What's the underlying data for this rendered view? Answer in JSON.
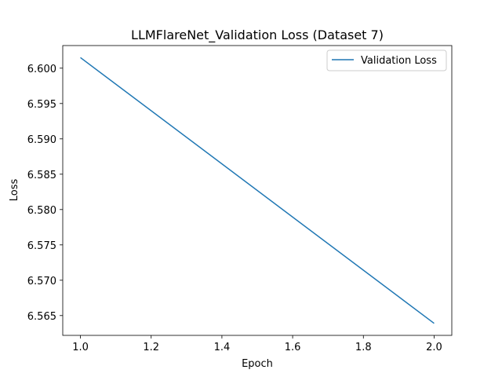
{
  "chart_data": {
    "type": "line",
    "title": "LLMFlareNet_Validation Loss  (Dataset 7)",
    "xlabel": "Epoch",
    "ylabel": "Loss",
    "x": [
      1.0,
      2.0
    ],
    "series": [
      {
        "name": "Validation Loss",
        "values": [
          6.6015,
          6.5639
        ],
        "color": "#1f77b4"
      }
    ],
    "xlim": [
      0.95,
      2.05
    ],
    "ylim": [
      6.5622,
      6.6032
    ],
    "xticks": [
      1.0,
      1.2,
      1.4,
      1.6,
      1.8,
      2.0
    ],
    "xtick_labels": [
      "1.0",
      "1.2",
      "1.4",
      "1.6",
      "1.8",
      "2.0"
    ],
    "yticks": [
      6.565,
      6.57,
      6.575,
      6.58,
      6.585,
      6.59,
      6.595,
      6.6
    ],
    "ytick_labels": [
      "6.565",
      "6.570",
      "6.575",
      "6.580",
      "6.585",
      "6.590",
      "6.595",
      "6.600"
    ],
    "grid": false,
    "legend_position": "top-right"
  }
}
